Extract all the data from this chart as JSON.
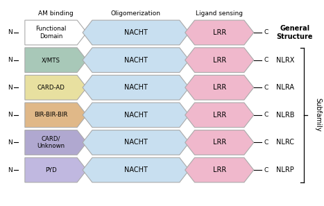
{
  "rows": [
    {
      "label": "Functional\nDomain",
      "color": "#ffffff",
      "edge": "#aaaaaa",
      "name": "",
      "is_general": true
    },
    {
      "label": "X/MTS",
      "color": "#a8c8b8",
      "edge": "#aaaaaa",
      "name": "NLRX",
      "is_general": false
    },
    {
      "label": "CARD-AD",
      "color": "#e8e0a0",
      "edge": "#aaaaaa",
      "name": "NLRA",
      "is_general": false
    },
    {
      "label": "BIR-BIR-BIR",
      "color": "#e0b888",
      "edge": "#aaaaaa",
      "name": "NLRB",
      "is_general": false
    },
    {
      "label": "CARD/\nUnknown",
      "color": "#b0a8d0",
      "edge": "#aaaaaa",
      "name": "NLRC",
      "is_general": false
    },
    {
      "label": "PYD",
      "color": "#c0b8e0",
      "edge": "#aaaaaa",
      "name": "NLRP",
      "is_general": false
    }
  ],
  "nacht_color": "#c8dff0",
  "nacht_edge": "#aaaaaa",
  "lrr_color": "#f0b8cc",
  "lrr_edge": "#aaaaaa",
  "header_am": "AM binding",
  "header_oligo": "Oligomerization",
  "header_ligand": "Ligand sensing",
  "general_label": "General\nStructure",
  "subfamily_label": "Subfamily",
  "background": "#ffffff"
}
